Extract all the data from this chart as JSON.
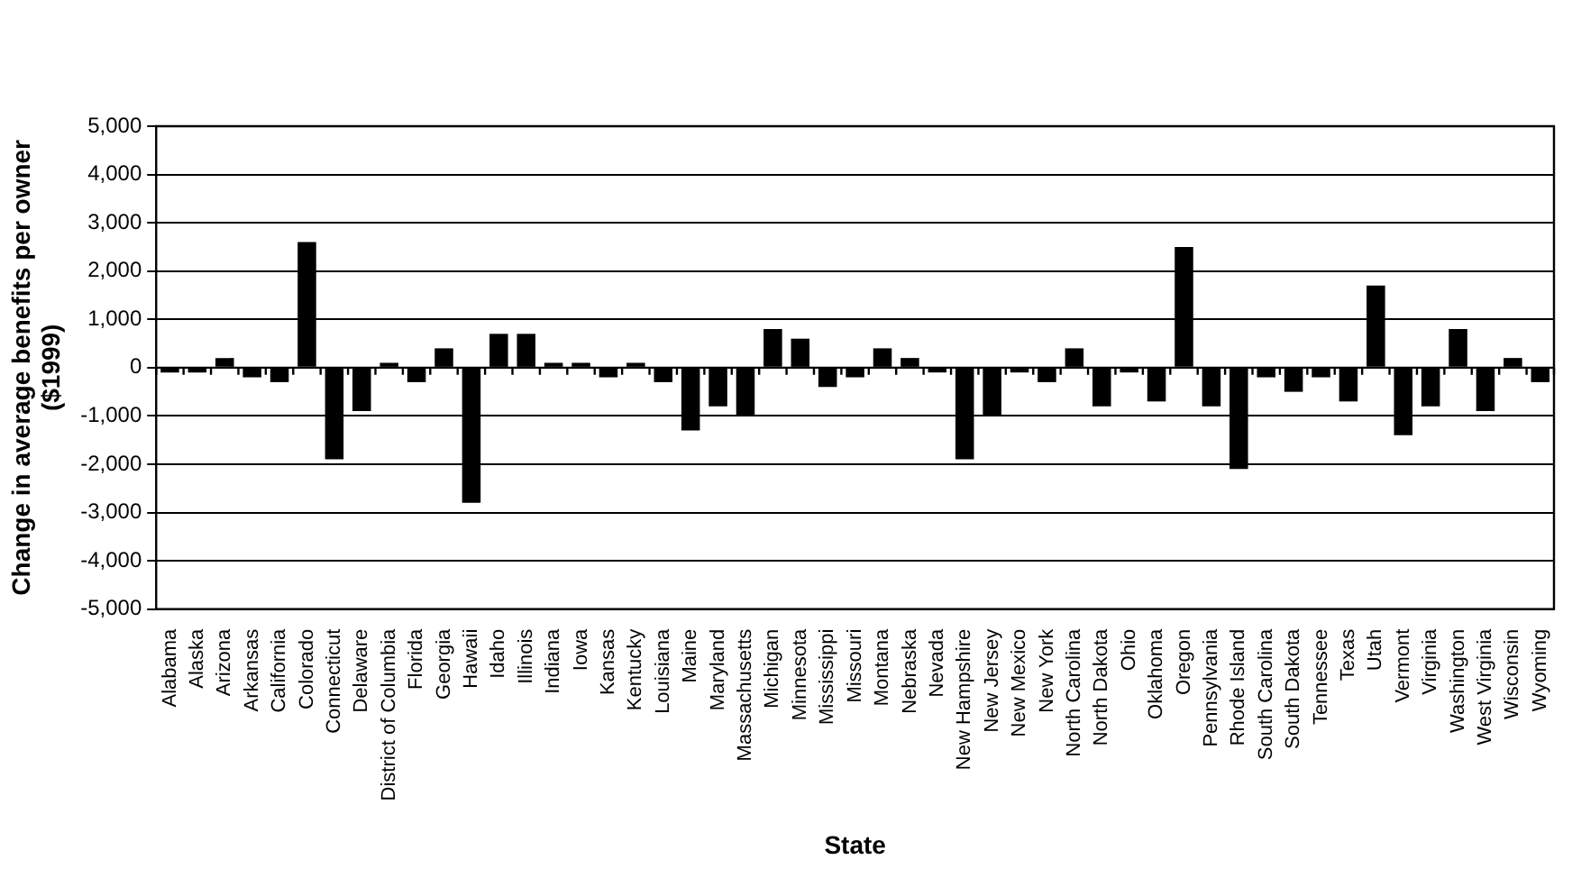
{
  "chart_data": {
    "type": "bar",
    "xlabel": "State",
    "ylabel": "Change in average benefits per owner\n($1999)",
    "categories": [
      "Alabama",
      "Alaska",
      "Arizona",
      "Arkansas",
      "California",
      "Colorado",
      "Connecticut",
      "Delaware",
      "District of Columbia",
      "Florida",
      "Georgia",
      "Hawaii",
      "Idaho",
      "Illinois",
      "Indiana",
      "Iowa",
      "Kansas",
      "Kentucky",
      "Louisiana",
      "Maine",
      "Maryland",
      "Massachusetts",
      "Michigan",
      "Minnesota",
      "Mississippi",
      "Missouri",
      "Montana",
      "Nebraska",
      "Nevada",
      "New Hampshire",
      "New Jersey",
      "New Mexico",
      "New York",
      "North Carolina",
      "North Dakota",
      "Ohio",
      "Oklahoma",
      "Oregon",
      "Pennsylvania",
      "Rhode Island",
      "South Carolina",
      "South Dakota",
      "Tennessee",
      "Texas",
      "Utah",
      "Vermont",
      "Virginia",
      "Washington",
      "West Virginia",
      "Wisconsin",
      "Wyoming"
    ],
    "values": [
      -100,
      -100,
      200,
      -200,
      -300,
      2600,
      -1900,
      -900,
      100,
      -300,
      400,
      -2800,
      700,
      700,
      100,
      100,
      -200,
      100,
      -300,
      -1300,
      -800,
      -1000,
      800,
      600,
      -400,
      -200,
      400,
      200,
      -100,
      -1900,
      -1000,
      -100,
      -300,
      400,
      -800,
      -100,
      -700,
      2500,
      -800,
      -2100,
      -200,
      -500,
      -200,
      -700,
      1700,
      -1400,
      -800,
      800,
      -900,
      200,
      -300
    ],
    "color": "#000000",
    "ylim": [
      -5000,
      5000
    ],
    "yticks": [
      {
        "value": -5000,
        "label": "-5,000"
      },
      {
        "value": -4000,
        "label": "-4,000"
      },
      {
        "value": -3000,
        "label": "-3,000"
      },
      {
        "value": -2000,
        "label": "-2,000"
      },
      {
        "value": -1000,
        "label": "-1,000"
      },
      0,
      {
        "value": 1000,
        "label": "1,000"
      },
      {
        "value": 2000,
        "label": "2,000"
      },
      {
        "value": 3000,
        "label": "3,000"
      },
      {
        "value": 4000,
        "label": "4,000"
      },
      {
        "value": 5000,
        "label": "5,000"
      }
    ],
    "grid": "y"
  }
}
